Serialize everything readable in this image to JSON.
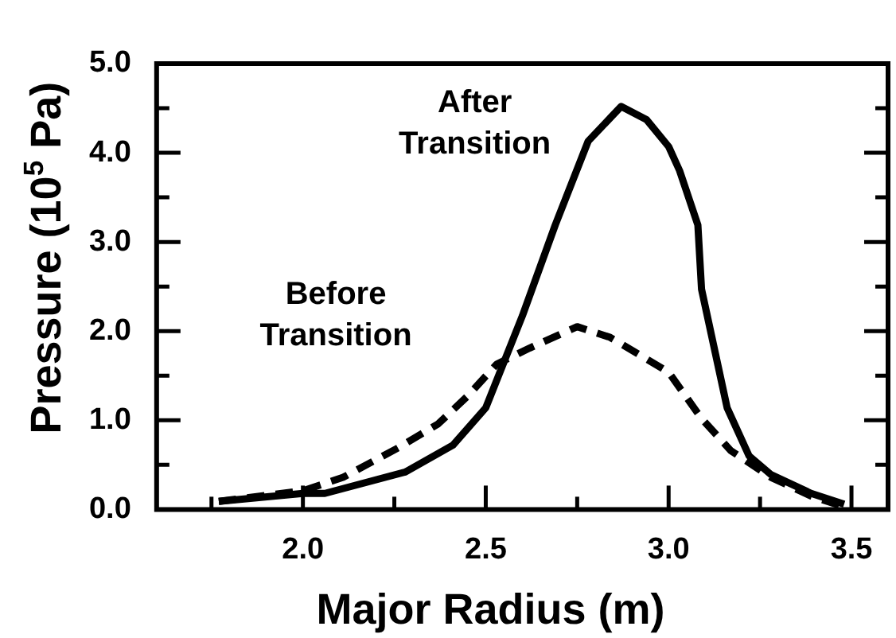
{
  "chart_data": {
    "type": "line",
    "xlabel": "Major Radius (m)",
    "ylabel": "Pressure (10$^{5}$ Pa)",
    "xlim": [
      1.6,
      3.6
    ],
    "ylim": [
      0,
      5
    ],
    "xticks": [
      {
        "value": 1.75,
        "label": null
      },
      {
        "value": 2.0,
        "label": "2.0"
      },
      {
        "value": 2.25,
        "label": null
      },
      {
        "value": 2.5,
        "label": "2.5"
      },
      {
        "value": 2.75,
        "label": null
      },
      {
        "value": 3.0,
        "label": "3.0"
      },
      {
        "value": 3.25,
        "label": null
      },
      {
        "value": 3.5,
        "label": "3.5"
      }
    ],
    "yticks": [
      {
        "value": 0,
        "label": "0.0"
      },
      {
        "value": 0.5,
        "label": null
      },
      {
        "value": 1,
        "label": "1.0"
      },
      {
        "value": 1.5,
        "label": null
      },
      {
        "value": 2,
        "label": "2.0"
      },
      {
        "value": 2.5,
        "label": null
      },
      {
        "value": 3,
        "label": "3.0"
      },
      {
        "value": 3.5,
        "label": null
      },
      {
        "value": 4,
        "label": "4.0"
      },
      {
        "value": 4.5,
        "label": null
      },
      {
        "value": 5,
        "label": "5.0"
      }
    ],
    "grid": false,
    "legend": false,
    "marker": "none",
    "series": [
      {
        "name": "After Transition",
        "color": "#000000",
        "line_style": "solid",
        "x": [
          1.77,
          2.0,
          2.06,
          2.28,
          2.41,
          2.5,
          2.6,
          2.69,
          2.78,
          2.87,
          2.94,
          3.0,
          3.03,
          3.08,
          3.09,
          3.16,
          3.22,
          3.28,
          3.39,
          3.48
        ],
        "values": [
          0.09,
          0.18,
          0.18,
          0.42,
          0.72,
          1.14,
          2.17,
          3.19,
          4.13,
          4.52,
          4.37,
          4.07,
          3.8,
          3.19,
          2.47,
          1.14,
          0.6,
          0.39,
          0.18,
          0.06
        ]
      },
      {
        "name": "Before Transition",
        "color": "#000000",
        "line_style": "dashed",
        "x": [
          1.77,
          2.0,
          2.11,
          2.26,
          2.37,
          2.45,
          2.53,
          2.62,
          2.75,
          2.84,
          3.0,
          3.09,
          3.17,
          3.28,
          3.39,
          3.48
        ],
        "values": [
          0.09,
          0.21,
          0.36,
          0.69,
          0.96,
          1.27,
          1.63,
          1.81,
          2.05,
          1.93,
          1.54,
          1.02,
          0.66,
          0.36,
          0.15,
          0.03
        ]
      }
    ]
  }
}
